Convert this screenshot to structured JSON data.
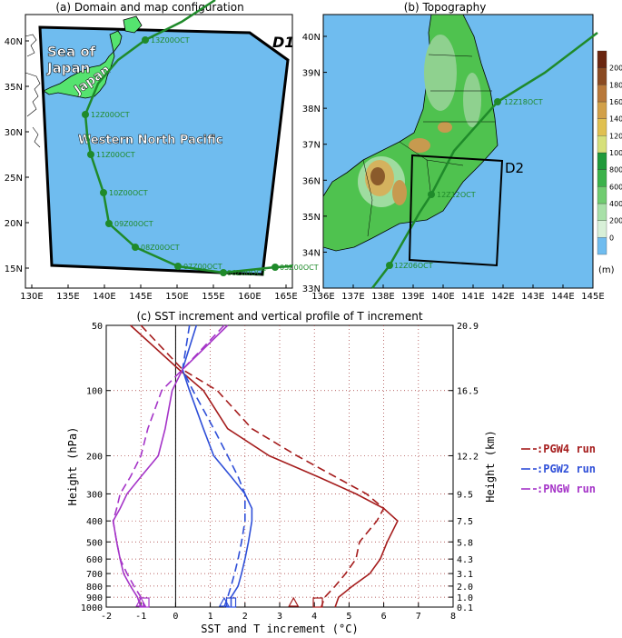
{
  "panel_a": {
    "title": "(a) Domain and map configuration",
    "domain_label": "D1",
    "region_labels": {
      "sea_of_japan_1": "Sea of",
      "sea_of_japan_2": "Japan",
      "japan": "Japan",
      "wnp": "Western North Pacific"
    },
    "x_ticks": [
      "130E",
      "135E",
      "140E",
      "145E",
      "150E",
      "155E",
      "160E",
      "165E"
    ],
    "y_ticks": [
      "15N",
      "20N",
      "25N",
      "30N",
      "35N",
      "40N"
    ],
    "track_labels": [
      "13Z00OCT",
      "12Z00OCT",
      "11Z00OCT",
      "10Z00OCT",
      "09Z00OCT",
      "08Z00OCT",
      "07Z00OCT",
      "06Z00OCT",
      "05Z00OCT"
    ]
  },
  "panel_b": {
    "title": "(b) Topography",
    "domain_label": "D2",
    "x_ticks": [
      "136E",
      "137E",
      "138E",
      "139E",
      "140E",
      "141E",
      "142E",
      "143E",
      "144E",
      "145E"
    ],
    "y_ticks": [
      "33N",
      "34N",
      "35N",
      "36N",
      "37N",
      "38N",
      "39N",
      "40N"
    ],
    "track_labels": [
      "12Z18OCT",
      "12Z12OCT",
      "12Z06OCT"
    ],
    "colorbar_ticks": [
      "0",
      "200",
      "400",
      "600",
      "800",
      "1000",
      "1200",
      "1400",
      "1600",
      "1800",
      "2000"
    ],
    "colorbar_unit": "(m)"
  },
  "chart_data": {
    "type": "line",
    "title": "(c) SST increment and vertical profile of T increment",
    "xlabel": "SST and T increment (°C)",
    "ylabel": "Height (hPa)",
    "ylabel_right": "Height (km)",
    "xlim": [
      -2,
      8
    ],
    "ylim": [
      1000,
      50
    ],
    "y_log": true,
    "x_ticks": [
      "-2",
      "-1",
      "0",
      "1",
      "2",
      "3",
      "4",
      "5",
      "6",
      "7",
      "8"
    ],
    "y_ticks_hpa": [
      "50",
      "100",
      "200",
      "300",
      "400",
      "500",
      "600",
      "700",
      "800",
      "900",
      "1000"
    ],
    "y_ticks_km": [
      "20.9",
      "16.5",
      "12.2",
      "9.5",
      "7.5",
      "5.8",
      "4.3",
      "3.1",
      "2.0",
      "1.0",
      "0.1"
    ],
    "grid": true,
    "legend_position": "right",
    "series": [
      {
        "name": ":PGW4 run",
        "color": "#a51c1c",
        "style": "solid",
        "x": [
          -1.3,
          0.1,
          0.8,
          1.5,
          2.7,
          4.1,
          5.2,
          6.0,
          6.4,
          6.1,
          5.9,
          5.6,
          5.1,
          4.7,
          4.6
        ],
        "y": [
          50,
          80,
          100,
          150,
          200,
          250,
          300,
          350,
          400,
          500,
          600,
          700,
          800,
          900,
          1000
        ]
      },
      {
        "name": "",
        "color": "#a51c1c",
        "style": "dashed",
        "x": [
          -1.0,
          0.2,
          1.2,
          2.2,
          3.5,
          4.6,
          5.5,
          6.0,
          5.8,
          5.3,
          5.2,
          4.9,
          4.6,
          4.3,
          4.2
        ],
        "y": [
          50,
          80,
          100,
          150,
          200,
          250,
          300,
          350,
          400,
          500,
          600,
          700,
          800,
          900,
          1000
        ]
      },
      {
        "name": ":PGW2 run",
        "color": "#2f4fd8",
        "style": "solid",
        "x": [
          0.6,
          0.2,
          0.4,
          0.8,
          1.1,
          1.6,
          2.0,
          2.2,
          2.2,
          2.1,
          2.0,
          1.9,
          1.8,
          1.6,
          1.6
        ],
        "y": [
          50,
          80,
          100,
          150,
          200,
          250,
          300,
          350,
          400,
          500,
          600,
          700,
          800,
          900,
          1000
        ]
      },
      {
        "name": "",
        "color": "#2f4fd8",
        "style": "dashed",
        "x": [
          0.4,
          0.2,
          0.5,
          1.1,
          1.5,
          1.8,
          2.0,
          2.0,
          2.0,
          1.9,
          1.8,
          1.7,
          1.6,
          1.5,
          1.4
        ],
        "y": [
          50,
          80,
          100,
          150,
          200,
          250,
          300,
          350,
          400,
          500,
          600,
          700,
          800,
          900,
          1000
        ]
      },
      {
        "name": ":PNGW run",
        "color": "#a534c8",
        "style": "solid",
        "x": [
          1.5,
          0.2,
          -0.1,
          -0.3,
          -0.5,
          -1.0,
          -1.4,
          -1.6,
          -1.8,
          -1.7,
          -1.6,
          -1.5,
          -1.3,
          -1.1,
          -1.0
        ],
        "y": [
          50,
          80,
          100,
          150,
          200,
          250,
          300,
          350,
          400,
          500,
          600,
          700,
          800,
          900,
          1000
        ]
      },
      {
        "name": "",
        "color": "#a534c8",
        "style": "dashed",
        "x": [
          1.4,
          0.2,
          -0.4,
          -0.8,
          -1.0,
          -1.3,
          -1.6,
          -1.7,
          -1.8,
          -1.7,
          -1.6,
          -1.4,
          -1.2,
          -1.0,
          -0.9
        ],
        "y": [
          50,
          80,
          100,
          150,
          200,
          250,
          300,
          350,
          400,
          500,
          600,
          700,
          800,
          900,
          1000
        ]
      }
    ],
    "markers": [
      {
        "x": -0.9,
        "y": 1000,
        "shape": "square",
        "color": "#a534c8"
      },
      {
        "x": -1.0,
        "y": 1000,
        "shape": "triangle",
        "color": "#a534c8"
      },
      {
        "x": 1.4,
        "y": 1000,
        "shape": "triangle",
        "color": "#2f4fd8"
      },
      {
        "x": 1.6,
        "y": 1000,
        "shape": "square",
        "color": "#2f4fd8"
      },
      {
        "x": 3.4,
        "y": 1000,
        "shape": "triangle",
        "color": "#a51c1c"
      },
      {
        "x": 4.1,
        "y": 1000,
        "shape": "square",
        "color": "#a51c1c"
      }
    ]
  }
}
